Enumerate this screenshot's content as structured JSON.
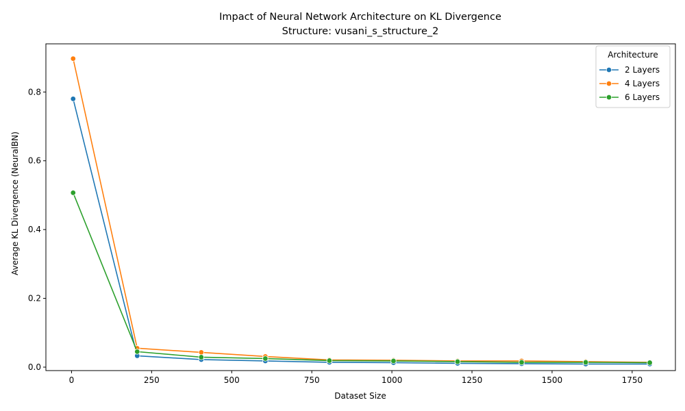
{
  "chart_data": {
    "type": "line",
    "title": "Impact of Neural Network Architecture on KL Divergence",
    "subtitle": "Structure: vusani_s_structure_2",
    "xlabel": "Dataset Size",
    "ylabel": "Average KL Divergence (NeuralBN)",
    "xlim": [
      -80,
      1885
    ],
    "ylim": [
      -0.01,
      0.94
    ],
    "xticks": [
      0,
      250,
      500,
      750,
      1000,
      1250,
      1500,
      1750
    ],
    "xtick_labels": [
      "0",
      "250",
      "500",
      "750",
      "1000",
      "1250",
      "1500",
      "1750"
    ],
    "yticks": [
      0.0,
      0.2,
      0.4,
      0.6,
      0.8
    ],
    "ytick_labels": [
      "0.0",
      "0.2",
      "0.4",
      "0.6",
      "0.8"
    ],
    "grid": false,
    "legend": {
      "title": "Architecture",
      "placement": "top-right"
    },
    "x": [
      5,
      205,
      405,
      605,
      805,
      1005,
      1205,
      1405,
      1605,
      1805
    ],
    "series": [
      {
        "name": "2 Layers",
        "color": "#1f77b4",
        "values": [
          0.78,
          0.033,
          0.022,
          0.018,
          0.014,
          0.013,
          0.011,
          0.01,
          0.009,
          0.009
        ]
      },
      {
        "name": "4 Layers",
        "color": "#ff7f0e",
        "values": [
          0.897,
          0.055,
          0.043,
          0.031,
          0.021,
          0.02,
          0.018,
          0.018,
          0.016,
          0.014
        ]
      },
      {
        "name": "6 Layers",
        "color": "#2ca02c",
        "values": [
          0.507,
          0.045,
          0.029,
          0.025,
          0.019,
          0.018,
          0.016,
          0.014,
          0.014,
          0.013
        ]
      }
    ]
  }
}
